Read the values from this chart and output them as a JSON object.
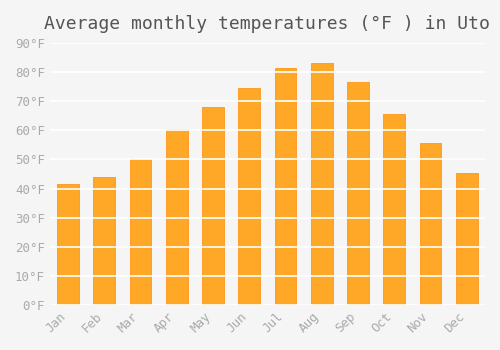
{
  "title": "Average monthly temperatures (°F ) in Uto",
  "months": [
    "Jan",
    "Feb",
    "Mar",
    "Apr",
    "May",
    "Jun",
    "Jul",
    "Aug",
    "Sep",
    "Oct",
    "Nov",
    "Dec"
  ],
  "values": [
    41.5,
    44.0,
    50.0,
    60.5,
    68.0,
    74.5,
    81.5,
    83.0,
    76.5,
    65.5,
    55.5,
    45.5
  ],
  "bar_color": "#FFA726",
  "bar_edge_color": "#FF8C00",
  "background_color": "#F5F5F5",
  "grid_color": "#FFFFFF",
  "ylim": [
    0,
    90
  ],
  "yticks": [
    0,
    10,
    20,
    30,
    40,
    50,
    60,
    70,
    80,
    90
  ],
  "title_fontsize": 13,
  "tick_fontsize": 9,
  "tick_color": "#AAAAAA",
  "font_family": "monospace"
}
